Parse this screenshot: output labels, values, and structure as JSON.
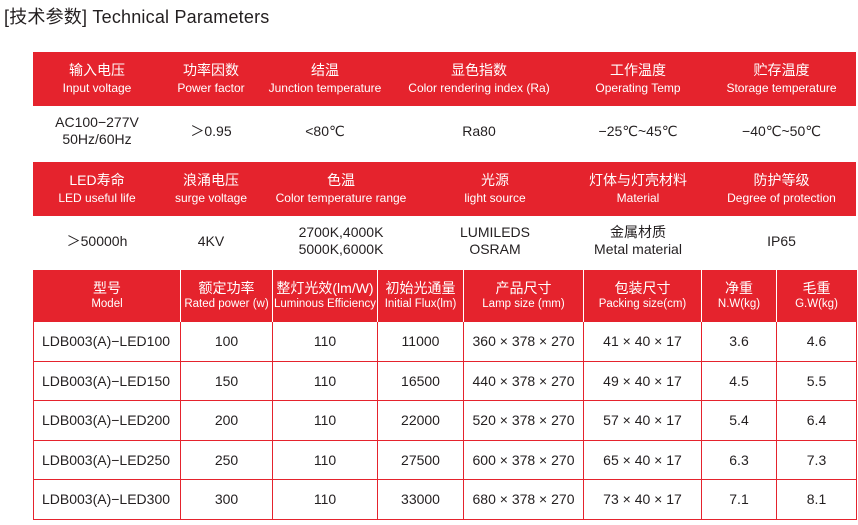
{
  "title": "[技术参数] Technical Parameters",
  "params_top": {
    "headers": [
      {
        "cn": "输入电压",
        "en": "Input voltage"
      },
      {
        "cn": "功率因数",
        "en": "Power factor"
      },
      {
        "cn": "结温",
        "en": "Junction temperature"
      },
      {
        "cn": "显色指数",
        "en": "Color rendering index (Ra)"
      },
      {
        "cn": "工作温度",
        "en": "Operating Temp"
      },
      {
        "cn": "贮存温度",
        "en": "Storage temperature"
      }
    ],
    "values": [
      [
        "AC100−277V",
        "50Hz/60Hz"
      ],
      [
        "＞0.95"
      ],
      [
        "<80℃"
      ],
      [
        "Ra80"
      ],
      [
        "−25℃~45℃"
      ],
      [
        "−40℃~50℃"
      ]
    ]
  },
  "params_bottom": {
    "headers": [
      {
        "cn": "LED寿命",
        "en": "LED useful life"
      },
      {
        "cn": "浪涌电压",
        "en": "surge voltage"
      },
      {
        "cn": "色温",
        "en": "Color temperature range"
      },
      {
        "cn": "光源",
        "en": "light source"
      },
      {
        "cn": "灯体与灯壳材料",
        "en": "Material"
      },
      {
        "cn": "防护等级",
        "en": "Degree of protection"
      }
    ],
    "values": [
      [
        "＞50000h"
      ],
      [
        "4KV"
      ],
      [
        "2700K,4000K",
        "5000K,6000K"
      ],
      [
        "LUMILEDS",
        "OSRAM"
      ],
      [
        "金属材质",
        "Metal material"
      ],
      [
        "IP65"
      ]
    ]
  },
  "models_table": {
    "headers": [
      {
        "cn": "型号",
        "en": "Model"
      },
      {
        "cn": "额定功率",
        "en": "Rated power (w)"
      },
      {
        "cn": "整灯光效(lm/W)",
        "en": "Luminous Efficiency"
      },
      {
        "cn": "初始光通量",
        "en": "Initial Flux(lm)"
      },
      {
        "cn": "产品尺寸",
        "en": "Lamp size (mm)"
      },
      {
        "cn": "包装尺寸",
        "en": "Packing size(cm)"
      },
      {
        "cn": "净重",
        "en": "N.W(kg)"
      },
      {
        "cn": "毛重",
        "en": "G.W(kg)"
      }
    ],
    "rows": [
      [
        "LDB003(A)−LED100",
        "100",
        "110",
        "11000",
        "360 × 378 × 270",
        "41 × 40 × 17",
        "3.6",
        "4.6"
      ],
      [
        "LDB003(A)−LED150",
        "150",
        "110",
        "16500",
        "440 × 378 × 270",
        "49 × 40 × 17",
        "4.5",
        "5.5"
      ],
      [
        "LDB003(A)−LED200",
        "200",
        "110",
        "22000",
        "520 × 378 × 270",
        "57 × 40 × 17",
        "5.4",
        "6.4"
      ],
      [
        "LDB003(A)−LED250",
        "250",
        "110",
        "27500",
        "600 × 378 × 270",
        "65 × 40 × 17",
        "6.3",
        "7.3"
      ],
      [
        "LDB003(A)−LED300",
        "300",
        "110",
        "33000",
        "680 × 378 × 270",
        "73 × 40 × 17",
        "7.1",
        "8.1"
      ]
    ]
  }
}
